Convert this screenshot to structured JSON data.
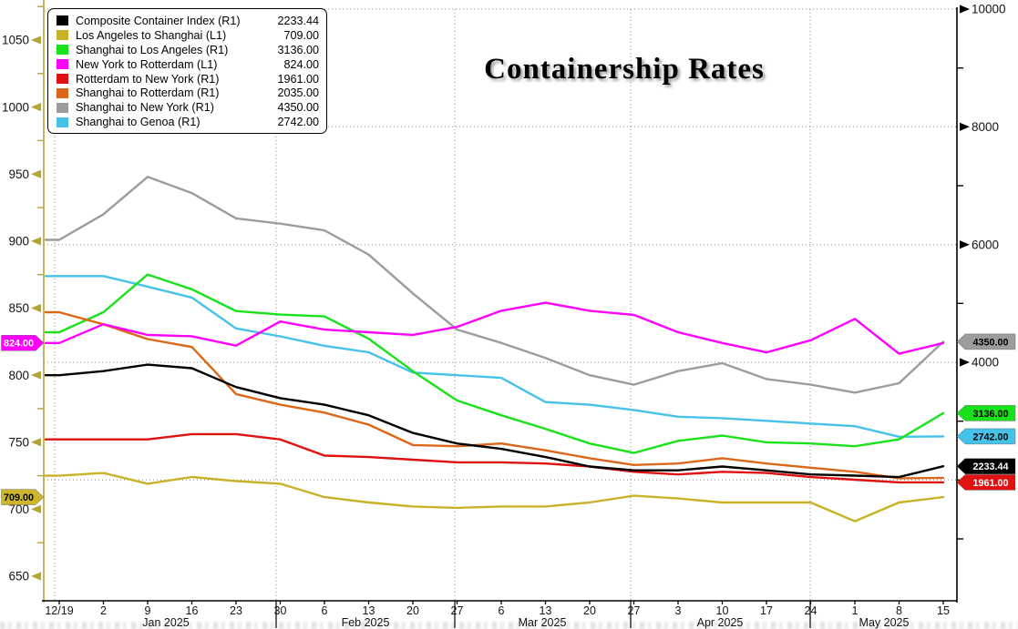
{
  "title": "Containership Rates",
  "chart_data": {
    "type": "line",
    "x_tick_labels": [
      "12/19",
      "2",
      "9",
      "16",
      "23",
      "30",
      "6",
      "13",
      "20",
      "27",
      "6",
      "13",
      "20",
      "27",
      "3",
      "10",
      "17",
      "24",
      "1",
      "8",
      "15"
    ],
    "month_labels": [
      "Jan 2025",
      "Feb 2025",
      "Mar 2025",
      "Apr 2025",
      "May 2025"
    ],
    "axes": {
      "left": {
        "id": "L1",
        "color": "#b3a339",
        "labeled_ticks": [
          650,
          700,
          750,
          800,
          850,
          900,
          950,
          1000,
          1050
        ],
        "minor_step": 25,
        "range": [
          632,
          1075
        ]
      },
      "right": {
        "id": "R1",
        "color": "#000000",
        "labeled_ticks": [
          4000,
          6000,
          8000,
          10000
        ],
        "minor_step": 1000,
        "range": [
          0,
          10150
        ]
      }
    },
    "grid": {
      "h_values_right_scale": [
        2000,
        4000,
        6000,
        8000,
        10000
      ],
      "v_month_separators": true
    },
    "series": [
      {
        "key": "composite",
        "label": "Composite Container Index",
        "scale": "R1",
        "color": "#000000",
        "legend_value": "2233.44",
        "tag": {
          "text": "2233.44",
          "bg": "#000000",
          "fg": "#ffffff",
          "side": "right"
        },
        "values": [
          3780,
          3850,
          3960,
          3900,
          3580,
          3390,
          3280,
          3100,
          2800,
          2620,
          2530,
          2390,
          2230,
          2165,
          2165,
          2230,
          2165,
          2095,
          2075,
          2050,
          2233.44
        ]
      },
      {
        "key": "la-to-shanghai",
        "label": "Los Angeles to Shanghai",
        "scale": "L1",
        "color": "#c9b227",
        "legend_value": "709.00",
        "tag": {
          "text": "709.00",
          "bg": "#cdb62e",
          "fg": "#000000",
          "side": "left"
        },
        "values": [
          725,
          727,
          719,
          724,
          721,
          719,
          709,
          705,
          702,
          701,
          702,
          702,
          705,
          710,
          708,
          705,
          705,
          705,
          691,
          705,
          709
        ]
      },
      {
        "key": "shanghai-to-la",
        "label": "Shanghai to Los Angeles",
        "scale": "R1",
        "color": "#1ae21a",
        "legend_value": "3136.00",
        "tag": {
          "text": "3136.00",
          "bg": "#1ae21a",
          "fg": "#000000",
          "side": "right"
        },
        "values": [
          4510,
          4850,
          5490,
          5240,
          4870,
          4810,
          4780,
          4400,
          3850,
          3350,
          3100,
          2870,
          2620,
          2460,
          2665,
          2755,
          2640,
          2620,
          2575,
          2690,
          3136
        ]
      },
      {
        "key": "ny-to-rotterdam",
        "label": "New York to Rotterdam",
        "scale": "L1",
        "color": "#ff00ff",
        "legend_value": "824.00",
        "tag": {
          "text": "824.00",
          "bg": "#ff00ff",
          "fg": "#ffffff",
          "side": "left"
        },
        "values": [
          824,
          838,
          830,
          829,
          822,
          840,
          834,
          832,
          830,
          836,
          848,
          854,
          848,
          845,
          832,
          824,
          817,
          826,
          842,
          816,
          824
        ]
      },
      {
        "key": "rotterdam-to-ny",
        "label": "Rotterdam to New York",
        "scale": "R1",
        "color": "#e01111",
        "legend_value": "1961.00",
        "tag": {
          "text": "1961.00",
          "bg": "#e01111",
          "fg": "#ffffff",
          "side": "right"
        },
        "values": [
          2690,
          2690,
          2690,
          2780,
          2780,
          2690,
          2415,
          2390,
          2345,
          2300,
          2300,
          2280,
          2230,
          2140,
          2095,
          2140,
          2120,
          2050,
          2005,
          1960,
          1961
        ]
      },
      {
        "key": "shanghai-to-rotterdam",
        "label": "Shanghai to Rotterdam",
        "scale": "R1",
        "color": "#dd6718",
        "legend_value": "2035.00",
        "tag": null,
        "values": [
          4850,
          4645,
          4395,
          4260,
          3460,
          3280,
          3145,
          2940,
          2595,
          2575,
          2620,
          2505,
          2370,
          2255,
          2280,
          2370,
          2280,
          2210,
          2140,
          2030,
          2035
        ]
      },
      {
        "key": "shanghai-to-ny",
        "label": "Shanghai to New York",
        "scale": "R1",
        "color": "#9c9c9c",
        "legend_value": "4350.00",
        "tag": {
          "text": "4350.00",
          "bg": "#9c9c9c",
          "fg": "#000000",
          "side": "right"
        },
        "values": [
          6080,
          6515,
          7150,
          6875,
          6445,
          6355,
          6240,
          5830,
          5170,
          4555,
          4330,
          4075,
          3780,
          3620,
          3850,
          3985,
          3715,
          3620,
          3485,
          3645,
          4350
        ]
      },
      {
        "key": "shanghai-to-genoa",
        "label": "Shanghai to Genoa",
        "scale": "R1",
        "color": "#46c2e8",
        "legend_value": "2742.00",
        "tag": {
          "text": "2742.00",
          "bg": "#46c2e8",
          "fg": "#000000",
          "side": "right"
        },
        "values": [
          5465,
          5465,
          5285,
          5100,
          4575,
          4440,
          4280,
          4170,
          3825,
          3780,
          3735,
          3325,
          3280,
          3190,
          3075,
          3050,
          3005,
          2960,
          2915,
          2735,
          2742
        ]
      }
    ]
  }
}
